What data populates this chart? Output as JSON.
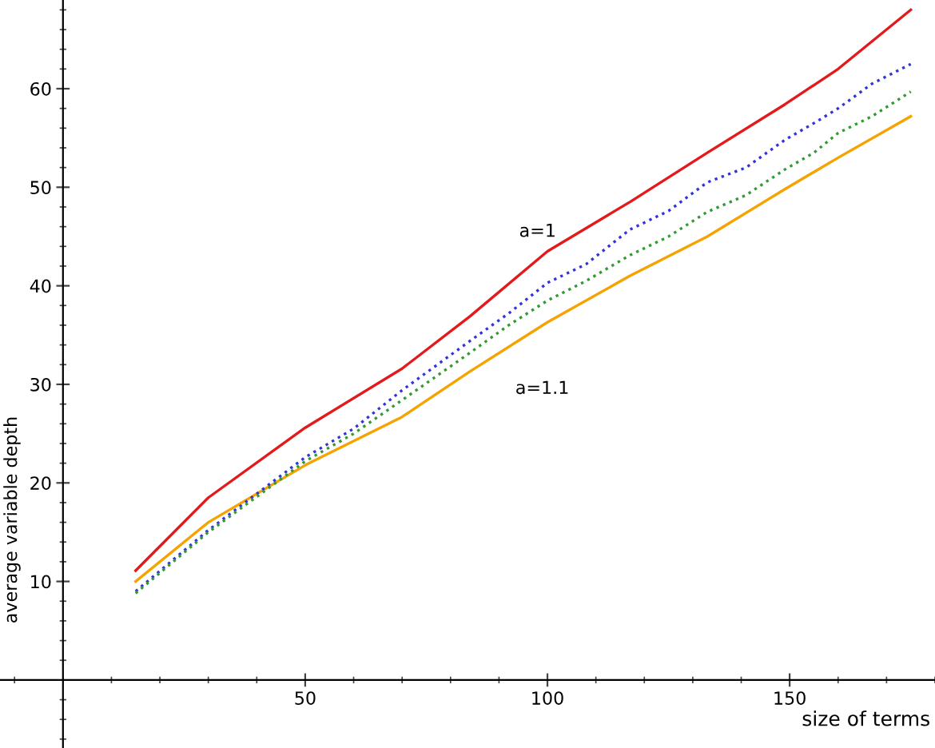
{
  "chart_data": {
    "type": "line",
    "xlabel": "size of terms",
    "ylabel": "average variable depth",
    "xlim": [
      -13,
      180
    ],
    "ylim": [
      -6.9,
      69
    ],
    "xticks": [
      50,
      100,
      150
    ],
    "yticks": [
      10,
      20,
      30,
      40,
      50,
      60
    ],
    "grid": false,
    "legend": false,
    "marker": "none",
    "series": [
      {
        "color": "#e31a1c",
        "line_style": "solid",
        "x": [
          15,
          30,
          50,
          70,
          84,
          100,
          117,
          133,
          149,
          160,
          175
        ],
        "values": [
          11.1,
          18.5,
          25.6,
          31.6,
          36.9,
          43.5,
          48.5,
          53.5,
          58.4,
          62,
          68
        ]
      },
      {
        "color": "#f5a300",
        "line_style": "solid",
        "x": [
          15,
          30,
          50,
          70,
          84,
          100,
          117,
          133,
          149,
          160,
          175
        ],
        "values": [
          10.0,
          16.0,
          21.8,
          26.7,
          31.3,
          36.3,
          41.0,
          45,
          49.8,
          53,
          57.2
        ]
      },
      {
        "color": "#3333dd",
        "line_style": "dotted",
        "x": [
          15,
          30,
          50,
          60,
          70,
          84,
          92,
          100,
          108,
          117,
          125,
          133,
          141,
          149,
          155,
          160,
          167,
          175
        ],
        "values": [
          9.0,
          15.2,
          22.6,
          25.5,
          29.4,
          34.4,
          37.2,
          40.3,
          42.2,
          45.7,
          47.6,
          50.5,
          52.0,
          54.8,
          56.5,
          58,
          60.5,
          62.5
        ]
      },
      {
        "color": "#339933",
        "line_style": "dotted",
        "x": [
          15,
          30,
          50,
          60,
          70,
          84,
          92,
          100,
          108,
          117,
          125,
          133,
          141,
          149,
          155,
          160,
          167,
          175
        ],
        "values": [
          8.8,
          15.0,
          22.2,
          25.0,
          28.4,
          33.2,
          36.0,
          38.5,
          40.5,
          43.1,
          45.0,
          47.5,
          49.2,
          51.8,
          53.5,
          55.5,
          57.2,
          59.7
        ]
      }
    ],
    "annotations": [
      "a=1",
      "a=1.1"
    ]
  }
}
